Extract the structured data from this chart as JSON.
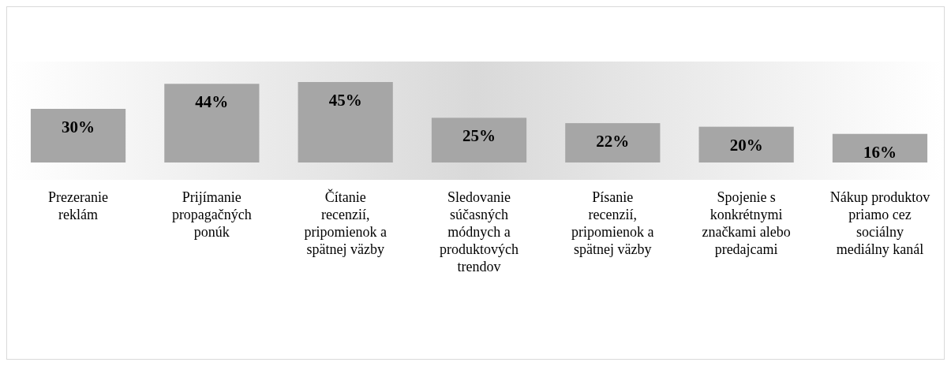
{
  "chart_data": {
    "type": "bar",
    "categories": [
      "Prezeranie reklám",
      "Prijímanie propagačných ponúk",
      "Čítanie recenzií, pripomienok a spätnej väzby",
      "Sledovanie súčasných módnych a produktových trendov",
      "Písanie recenzií, pripomienok a spätnej väzby",
      "Spojenie s konkrétnymi značkami alebo predajcami",
      "Nákup produktov priamo cez sociálny mediálny kanál"
    ],
    "values": [
      30,
      44,
      45,
      25,
      22,
      20,
      16
    ],
    "color": "#a6a6a6",
    "value_labels": [
      "30%",
      "44%",
      "45%",
      "25%",
      "22%",
      "20%",
      "16%"
    ]
  }
}
